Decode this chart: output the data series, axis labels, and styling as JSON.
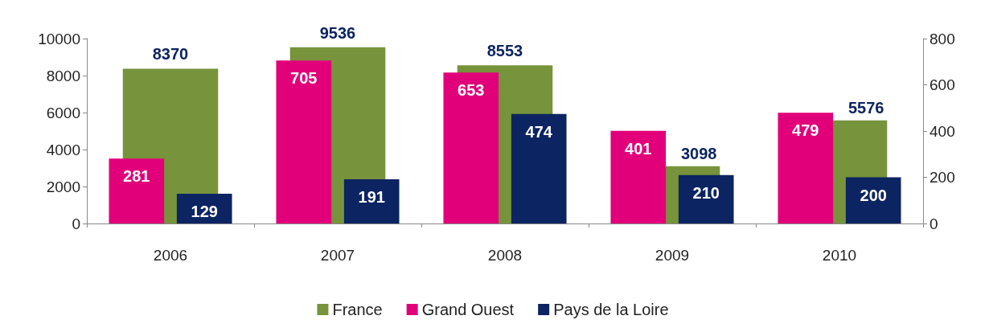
{
  "chart_data": {
    "type": "bar",
    "categories": [
      "2006",
      "2007",
      "2008",
      "2009",
      "2010"
    ],
    "series": [
      {
        "name": "France",
        "color": "#77933c",
        "values": [
          8370,
          9536,
          8553,
          3098,
          5576
        ]
      },
      {
        "name": "Grand Ouest",
        "color": "#e2007a",
        "values": [
          281,
          705,
          653,
          401,
          479
        ],
        "axis": "y2"
      },
      {
        "name": "Pays de la Loire",
        "color": "#0c2461",
        "values": [
          129,
          191,
          474,
          210,
          200
        ],
        "axis": "y2"
      }
    ],
    "ylim": [
      0,
      10000
    ],
    "yticks": [
      0,
      {
        "value": 2000,
        "label": "2000"
      },
      {
        "value": 4000,
        "label": "4000"
      },
      {
        "value": 6000,
        "label": "6000"
      },
      {
        "value": 8000,
        "label": "8000"
      },
      {
        "value": 10000,
        "label": "10000"
      }
    ],
    "y2lim": [
      0,
      800
    ],
    "y2ticks": [
      0,
      200,
      400,
      600,
      800
    ],
    "data_labels": true,
    "legend": "bottom",
    "grid": false
  }
}
